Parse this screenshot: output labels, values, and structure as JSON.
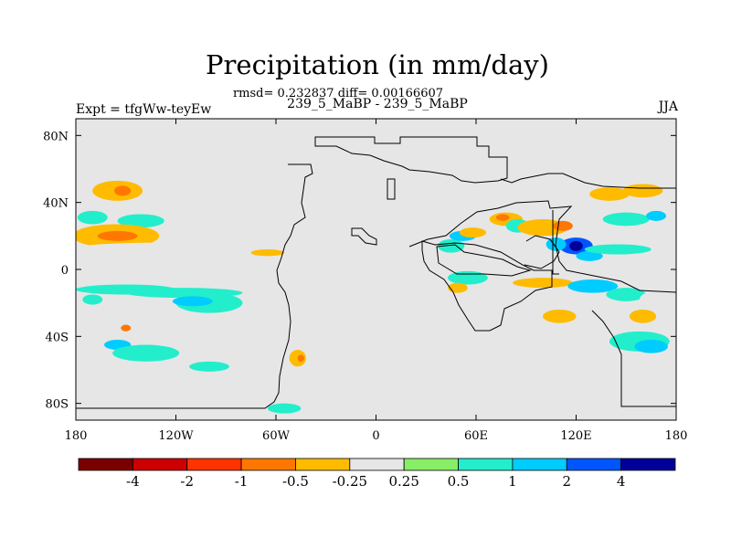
{
  "title": "Precipitation (in mm/day)",
  "stats_line": "rmsd= 0.232837 diff= 0.00166607",
  "case_line": "239_5_MaBP - 239_5_MaBP",
  "left_label": "Expt = tfgWw-teyEw",
  "right_label": "JJA",
  "lat_ticks": [
    {
      "label": "80N",
      "value": 80
    },
    {
      "label": "40N",
      "value": 40
    },
    {
      "label": "0",
      "value": 0
    },
    {
      "label": "40S",
      "value": -40
    },
    {
      "label": "80S",
      "value": -80
    }
  ],
  "lon_ticks": [
    {
      "label": "180",
      "value": -180
    },
    {
      "label": "120W",
      "value": -120
    },
    {
      "label": "60W",
      "value": -60
    },
    {
      "label": "0",
      "value": 0
    },
    {
      "label": "60E",
      "value": 60
    },
    {
      "label": "120E",
      "value": 120
    },
    {
      "label": "180",
      "value": 180
    }
  ],
  "colorbar": {
    "colors": [
      "#7a0000",
      "#cc0000",
      "#ff3300",
      "#ff7700",
      "#ffbb00",
      "#e6e6e6",
      "#88ee66",
      "#22eecc",
      "#00ccff",
      "#0055ff",
      "#000099"
    ],
    "labels": [
      "-4",
      "-2",
      "-1",
      "-0.5",
      "-0.25",
      "0.25",
      "0.5",
      "1",
      "2",
      "4"
    ]
  },
  "chart_data": {
    "type": "heatmap",
    "title": "Precipitation (in mm/day)",
    "subtitle": "239_5_MaBP - 239_5_MaBP",
    "xlabel": "",
    "ylabel": "",
    "xlim": [
      -180,
      180
    ],
    "ylim": [
      -90,
      90
    ],
    "background_color": "#e6e6e6",
    "levels": [
      -4,
      -2,
      -1,
      -0.5,
      -0.25,
      0.25,
      0.5,
      1,
      2,
      4
    ],
    "anomaly_patches": [
      {
        "lon": -155,
        "lat": 47,
        "rlon": 15,
        "rlat": 6,
        "level": -0.5
      },
      {
        "lon": -152,
        "lat": 47,
        "rlon": 5,
        "rlat": 3,
        "level": -1
      },
      {
        "lon": -170,
        "lat": 31,
        "rlon": 9,
        "rlat": 4,
        "level": 0.5
      },
      {
        "lon": -141,
        "lat": 29,
        "rlon": 14,
        "rlat": 4,
        "level": 0.5
      },
      {
        "lon": -156,
        "lat": 20,
        "rlon": 26,
        "rlat": 7,
        "level": -0.5
      },
      {
        "lon": -155,
        "lat": 20,
        "rlon": 12,
        "rlat": 3,
        "level": -1
      },
      {
        "lon": -130,
        "lat": 13,
        "rlon": 48,
        "rlat": 3,
        "level": -0.25
      },
      {
        "lon": -150,
        "lat": -12,
        "rlon": 30,
        "rlat": 3,
        "level": 0.5
      },
      {
        "lon": -115,
        "lat": -14,
        "rlon": 35,
        "rlat": 3,
        "level": 0.5
      },
      {
        "lon": -100,
        "lat": -20,
        "rlon": 20,
        "rlat": 6,
        "level": 0.5
      },
      {
        "lon": -110,
        "lat": -19,
        "rlon": 12,
        "rlat": 3,
        "level": 1
      },
      {
        "lon": -170,
        "lat": -18,
        "rlon": 6,
        "rlat": 3,
        "level": 0.5
      },
      {
        "lon": -108,
        "lat": -33,
        "rlon": 20,
        "rlat": 5,
        "level": -0.25
      },
      {
        "lon": -170,
        "lat": -36,
        "rlon": 8,
        "rlat": 4,
        "level": -0.25
      },
      {
        "lon": -150,
        "lat": -36,
        "rlon": 10,
        "rlat": 3,
        "level": -0.25
      },
      {
        "lon": -150,
        "lat": -35,
        "rlon": 3,
        "rlat": 2,
        "level": -1
      },
      {
        "lon": -155,
        "lat": -45,
        "rlon": 8,
        "rlat": 3,
        "level": 1
      },
      {
        "lon": -138,
        "lat": -50,
        "rlon": 20,
        "rlat": 5,
        "level": 0.5
      },
      {
        "lon": -100,
        "lat": -58,
        "rlon": 12,
        "rlat": 3,
        "level": 0.5
      },
      {
        "lon": -47,
        "lat": -53,
        "rlon": 5,
        "rlat": 5,
        "level": -0.5
      },
      {
        "lon": -45,
        "lat": -53,
        "rlon": 2,
        "rlat": 2,
        "level": -1
      },
      {
        "lon": -55,
        "lat": -83,
        "rlon": 10,
        "rlat": 3,
        "level": 0.5
      },
      {
        "lon": -65,
        "lat": 10,
        "rlon": 10,
        "rlat": 2,
        "level": -0.5
      },
      {
        "lon": 55,
        "lat": -5,
        "rlon": 12,
        "rlat": 4,
        "level": 0.5
      },
      {
        "lon": 49,
        "lat": -11,
        "rlon": 6,
        "rlat": 3,
        "level": -0.5
      },
      {
        "lon": 45,
        "lat": 14,
        "rlon": 8,
        "rlat": 4,
        "level": 0.5
      },
      {
        "lon": 52,
        "lat": 20,
        "rlon": 8,
        "rlat": 3,
        "level": 1
      },
      {
        "lon": 58,
        "lat": 22,
        "rlon": 8,
        "rlat": 3,
        "level": -0.5
      },
      {
        "lon": 78,
        "lat": 30,
        "rlon": 10,
        "rlat": 4,
        "level": -0.5
      },
      {
        "lon": 76,
        "lat": 31,
        "rlon": 4,
        "rlat": 2,
        "level": -1
      },
      {
        "lon": 85,
        "lat": 26,
        "rlon": 7,
        "rlat": 4,
        "level": 0.5
      },
      {
        "lon": 100,
        "lat": 25,
        "rlon": 15,
        "rlat": 5,
        "level": -0.5
      },
      {
        "lon": 112,
        "lat": 26,
        "rlon": 6,
        "rlat": 3,
        "level": -1
      },
      {
        "lon": 120,
        "lat": 14,
        "rlon": 10,
        "rlat": 5,
        "level": 2
      },
      {
        "lon": 120,
        "lat": 14,
        "rlon": 4,
        "rlat": 3,
        "level": 4
      },
      {
        "lon": 108,
        "lat": 15,
        "rlon": 6,
        "rlat": 4,
        "level": 1
      },
      {
        "lon": 128,
        "lat": 8,
        "rlon": 8,
        "rlat": 3,
        "level": 1
      },
      {
        "lon": 140,
        "lat": 45,
        "rlon": 12,
        "rlat": 4,
        "level": -0.5
      },
      {
        "lon": 160,
        "lat": 47,
        "rlon": 12,
        "rlat": 4,
        "level": -0.5
      },
      {
        "lon": 150,
        "lat": 30,
        "rlon": 14,
        "rlat": 4,
        "level": 0.5
      },
      {
        "lon": 160,
        "lat": 22,
        "rlon": 10,
        "rlat": 4,
        "level": -0.25
      },
      {
        "lon": 168,
        "lat": 32,
        "rlon": 6,
        "rlat": 3,
        "level": 1
      },
      {
        "lon": 145,
        "lat": 12,
        "rlon": 20,
        "rlat": 3,
        "level": 0.5
      },
      {
        "lon": 100,
        "lat": -8,
        "rlon": 18,
        "rlat": 3,
        "level": -0.5
      },
      {
        "lon": 130,
        "lat": -10,
        "rlon": 15,
        "rlat": 4,
        "level": 1
      },
      {
        "lon": 150,
        "lat": -15,
        "rlon": 12,
        "rlat": 4,
        "level": 0.5
      },
      {
        "lon": 168,
        "lat": -18,
        "rlon": 10,
        "rlat": 5,
        "level": -0.25
      },
      {
        "lon": 110,
        "lat": -28,
        "rlon": 10,
        "rlat": 4,
        "level": -0.5
      },
      {
        "lon": 160,
        "lat": -28,
        "rlon": 8,
        "rlat": 4,
        "level": -0.5
      },
      {
        "lon": 140,
        "lat": -33,
        "rlon": 10,
        "rlat": 3,
        "level": -0.25
      },
      {
        "lon": 158,
        "lat": -43,
        "rlon": 18,
        "rlat": 6,
        "level": 0.5
      },
      {
        "lon": 165,
        "lat": -46,
        "rlon": 10,
        "rlat": 4,
        "level": 1
      },
      {
        "lon": 135,
        "lat": -38,
        "rlon": 8,
        "rlat": 3,
        "level": -0.25
      }
    ]
  }
}
